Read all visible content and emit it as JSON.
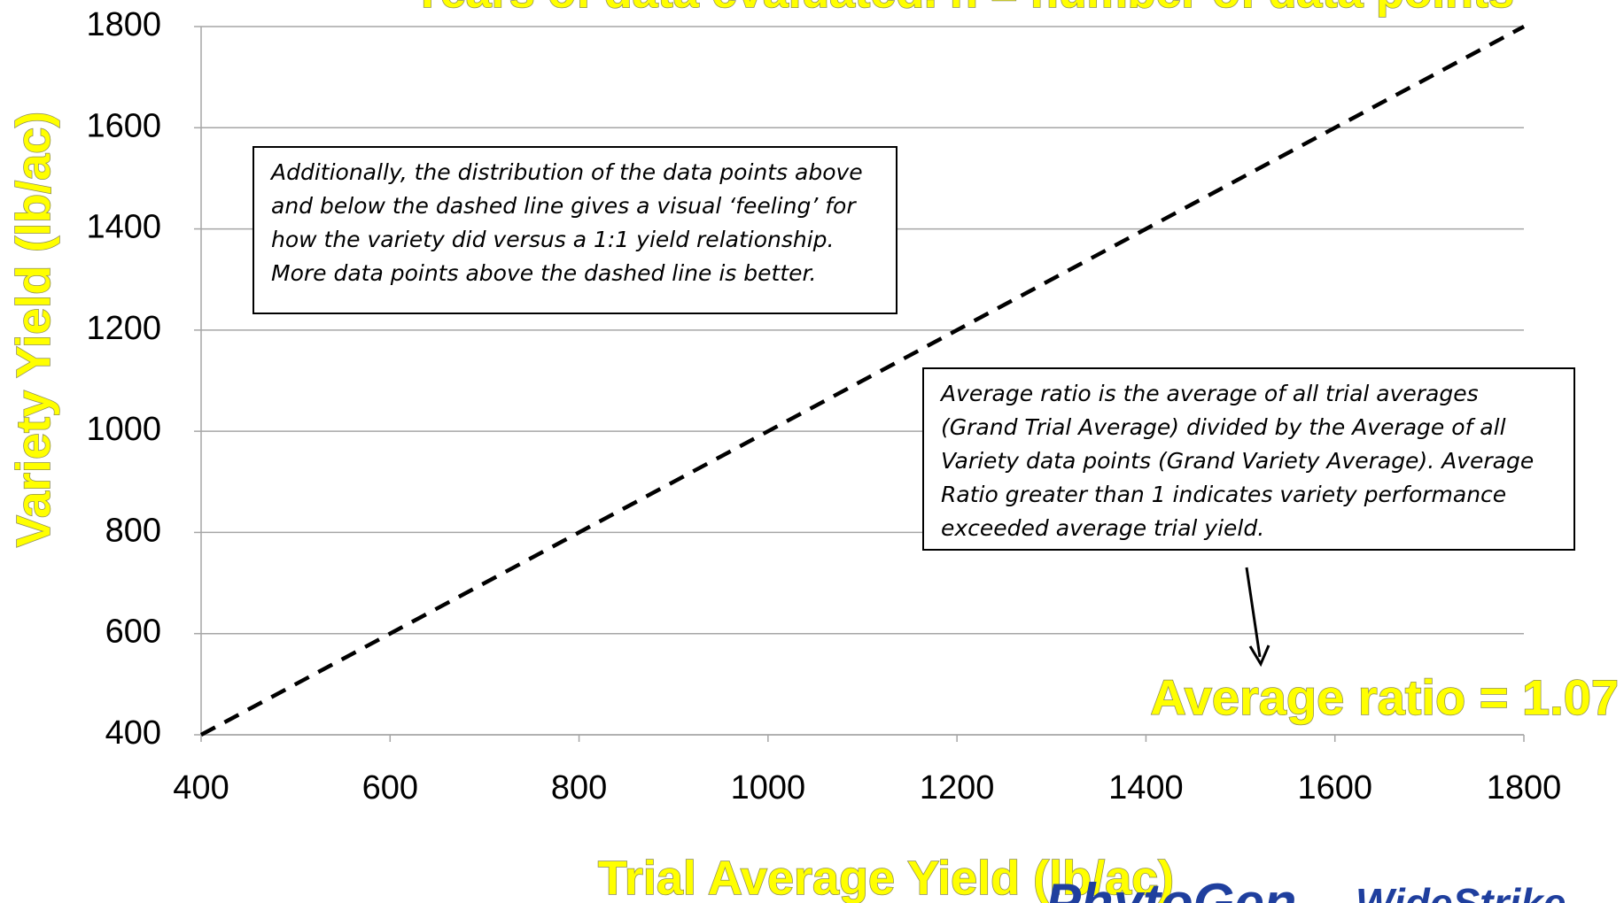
{
  "chart_data": {
    "type": "line",
    "title": "Years of data evaluated. n = number of data points",
    "x_label": "Trial Average Yield (lb/ac)",
    "y_label": "Variety Yield (lb/ac)",
    "x": [
      400,
      1800
    ],
    "series": [
      {
        "name": "1:1 line",
        "color": "#000000",
        "dashed": true,
        "values": [
          400,
          1800
        ]
      }
    ],
    "xlim": [
      400,
      1800
    ],
    "ylim": [
      400,
      1800
    ],
    "xticks": [
      400,
      600,
      800,
      1000,
      1200,
      1400,
      1600,
      1800
    ],
    "yticks": [
      400,
      600,
      800,
      1000,
      1200,
      1400,
      1600,
      1800
    ],
    "grid": true,
    "annotations": [
      {
        "lines": [
          "Additionally, the distribution of the data points above",
          "and below the dashed line gives a visual ‘feeling’ for",
          "how the variety did versus a 1:1 yield  relationship.",
          "More data points above the dashed line is better."
        ]
      },
      {
        "lines": [
          "Average ratio is the average of all trial averages",
          "(Grand Trial Average) divided by the Average of all",
          "Variety data points (Grand Variety Average). Average",
          "Ratio greater than 1 indicates variety performance",
          "exceeded average trial yield."
        ]
      }
    ],
    "highlight": "Average ratio = 1.07",
    "logos": [
      "PhytoGen",
      "WideStrike"
    ]
  }
}
